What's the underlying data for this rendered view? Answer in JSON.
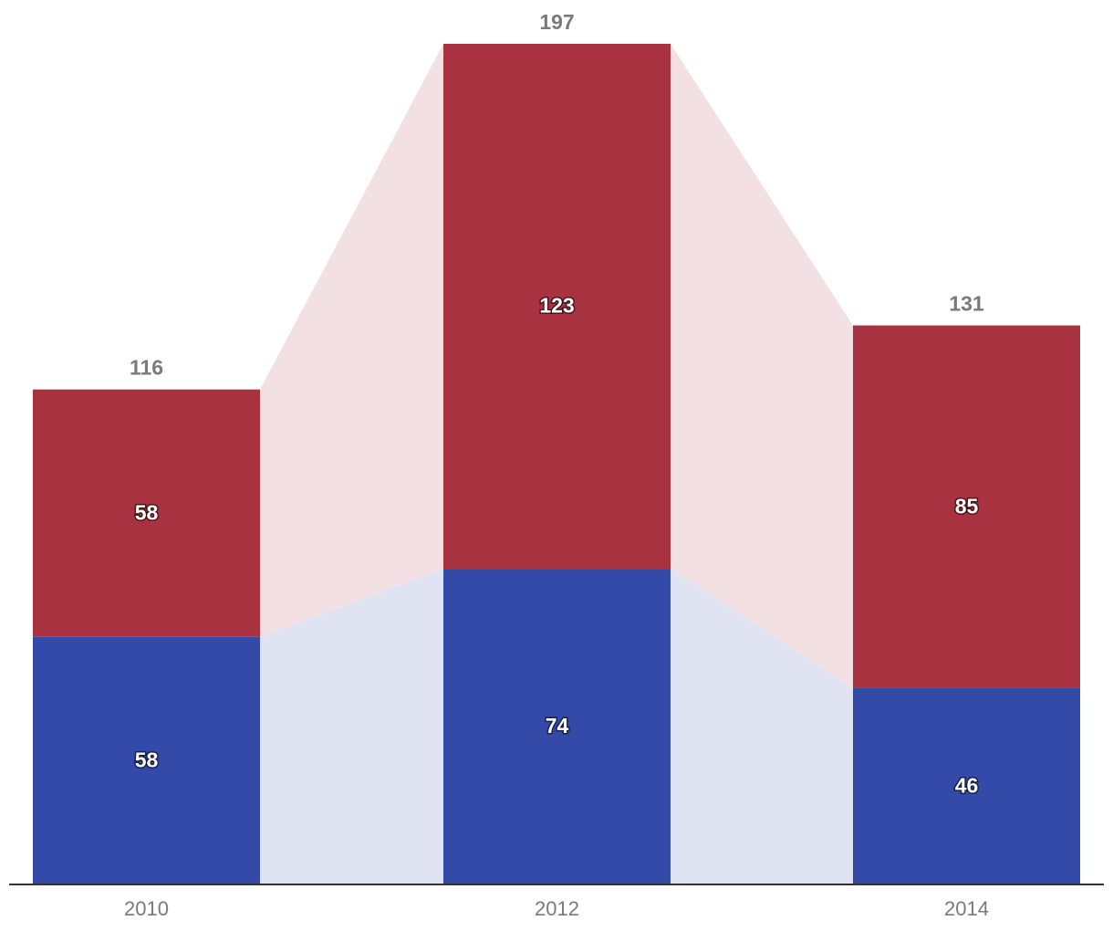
{
  "chart_data": {
    "type": "bar",
    "stacked": true,
    "categories": [
      "2010",
      "2012",
      "2014"
    ],
    "series": [
      {
        "values": [
          58,
          74,
          46
        ],
        "color": "#344aa9",
        "connector_color": "#e0e3f2"
      },
      {
        "values": [
          58,
          123,
          85
        ],
        "color": "#a93240",
        "connector_color": "#f2e0e2"
      }
    ],
    "totals": [
      116,
      197,
      131
    ],
    "ylim": [
      0,
      197
    ],
    "grid": false,
    "legend": "none",
    "title": "",
    "xlabel": "",
    "ylabel": ""
  }
}
